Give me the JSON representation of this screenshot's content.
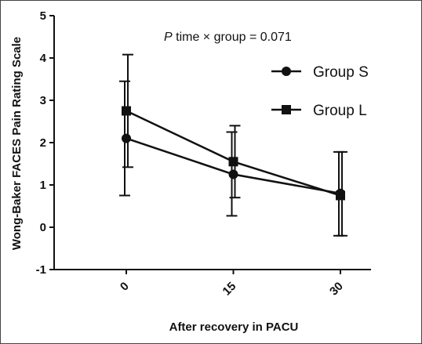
{
  "chart_data": {
    "type": "line",
    "title": "",
    "annotation": {
      "italic": "P",
      "text": " time × group = 0.071"
    },
    "xlabel": "After recovery in PACU",
    "ylabel": "Wong-Baker FACES Pain Rating Scale",
    "x": [
      0,
      15,
      30
    ],
    "x_tick_labels": [
      "0",
      "15",
      "30"
    ],
    "ylim": [
      -1,
      5
    ],
    "y_ticks": [
      -1,
      0,
      1,
      2,
      3,
      4,
      5
    ],
    "y_tick_labels": [
      "-1",
      "0",
      "1",
      "2",
      "3",
      "4",
      "5"
    ],
    "grid": false,
    "legend_position": "top-right",
    "series": [
      {
        "name": "Group S",
        "marker": "circle",
        "color": "#111111",
        "values": [
          2.1,
          1.25,
          0.8
        ],
        "error_low": [
          0.75,
          0.27,
          -0.2
        ],
        "error_high": [
          3.45,
          2.25,
          1.78
        ]
      },
      {
        "name": "Group L",
        "marker": "square",
        "color": "#111111",
        "values": [
          2.75,
          1.55,
          0.75
        ],
        "error_low": [
          1.42,
          0.7,
          -0.2
        ],
        "error_high": [
          4.08,
          2.4,
          1.78
        ]
      }
    ]
  }
}
